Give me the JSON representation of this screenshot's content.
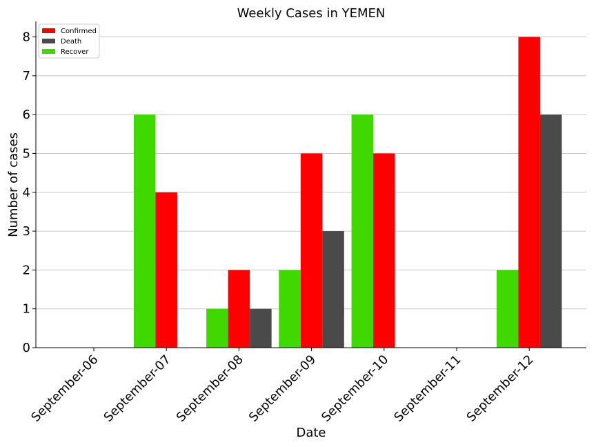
{
  "chart_data": {
    "type": "bar",
    "title": "Weekly Cases in YEMEN",
    "xlabel": "Date",
    "ylabel": "Number of cases",
    "categories": [
      "September-06",
      "September-07",
      "September-08",
      "September-09",
      "September-10",
      "September-11",
      "September-12"
    ],
    "series": [
      {
        "name": "Recover",
        "color": "#3fd900",
        "values": [
          0,
          6,
          1,
          2,
          6,
          0,
          2
        ]
      },
      {
        "name": "Confirmed",
        "color": "#ff0000",
        "values": [
          0,
          4,
          2,
          5,
          5,
          0,
          8
        ]
      },
      {
        "name": "Death",
        "color": "#4a4a4a",
        "values": [
          0,
          0,
          1,
          3,
          0,
          0,
          6
        ]
      }
    ],
    "legend_order": [
      "Confirmed",
      "Death",
      "Recover"
    ],
    "yticks": [
      0,
      1,
      2,
      3,
      4,
      5,
      6,
      7,
      8
    ],
    "ylim": [
      0,
      8.4
    ],
    "grid": "horizontal",
    "legend_position": "top-left"
  }
}
